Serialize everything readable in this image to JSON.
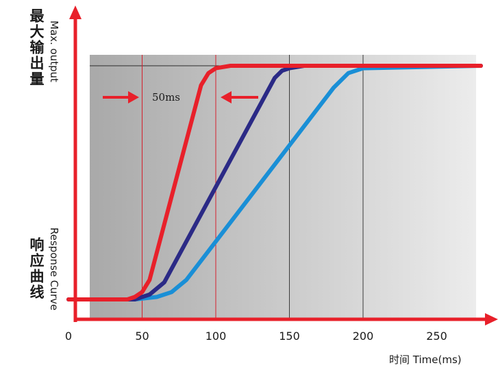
{
  "chart_data": {
    "type": "line",
    "title": "",
    "ylabel_top_cn": "最大输出量",
    "ylabel_top_en": "Max. output",
    "ylabel_bottom_cn": "响应曲线",
    "ylabel_bottom_en": "Response Curve",
    "xlabel": "时间 Time(ms)",
    "xlim": [
      0,
      300
    ],
    "ylim": [
      0,
      1
    ],
    "x_ticks": [
      "0",
      "50",
      "100",
      "150",
      "200",
      "250"
    ],
    "x_tick_values": [
      0,
      50,
      100,
      150,
      200,
      250
    ],
    "grid": false,
    "series": [
      {
        "color": "#e8202a",
        "x": [
          0,
          40,
          45,
          50,
          55,
          90,
          95,
          100,
          110,
          280
        ],
        "y": [
          0.04,
          0.04,
          0.05,
          0.07,
          0.12,
          0.92,
          0.97,
          0.99,
          1.0,
          1.0
        ]
      },
      {
        "color": "#2b2a86",
        "x": [
          0,
          45,
          55,
          65,
          140,
          145,
          150,
          160,
          280
        ],
        "y": [
          0.04,
          0.04,
          0.06,
          0.11,
          0.95,
          0.98,
          0.99,
          1.0,
          1.0
        ]
      },
      {
        "color": "#1a8fd6",
        "x": [
          0,
          45,
          60,
          70,
          80,
          180,
          190,
          200,
          280
        ],
        "y": [
          0.04,
          0.04,
          0.05,
          0.07,
          0.12,
          0.91,
          0.97,
          0.99,
          1.0
        ]
      }
    ],
    "reference_lines_x": [
      50,
      100,
      150,
      200
    ],
    "reference_line_colors": [
      "#d61f2c",
      "#d61f2c",
      "#3a3a3a",
      "#3a3a3a"
    ],
    "annotation": {
      "text": "50ms",
      "from": 50,
      "to": 100
    },
    "colors": {
      "axis": "#e8202a",
      "plot_bg_light": "#ececec",
      "plot_bg_dark": "#a9a9a9"
    }
  }
}
